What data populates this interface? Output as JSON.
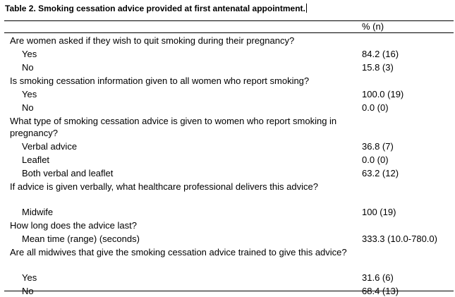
{
  "title": "Table 2. Smoking cessation advice provided at first antenatal appointment.",
  "column_header": "% (n)",
  "rows": [
    {
      "kind": "question",
      "text": "Are women asked if they wish to quit smoking during their pregnancy?",
      "lines": 1
    },
    {
      "kind": "answer",
      "text": "Yes",
      "value": "84.2 (16)"
    },
    {
      "kind": "answer",
      "text": "No",
      "value": "15.8 (3)"
    },
    {
      "kind": "question",
      "text": "Is smoking cessation information given to all women who report smoking?",
      "lines": 1
    },
    {
      "kind": "answer",
      "text": "Yes",
      "value": "100.0 (19)"
    },
    {
      "kind": "answer",
      "text": "No",
      "value": "0.0 (0)"
    },
    {
      "kind": "question",
      "text": "What type of smoking cessation advice is given to women who report smoking in pregnancy?",
      "lines": 2
    },
    {
      "kind": "answer",
      "text": "Verbal advice",
      "value": "36.8 (7)"
    },
    {
      "kind": "answer",
      "text": "Leaflet",
      "value": "0.0 (0)"
    },
    {
      "kind": "answer",
      "text": "Both verbal and leaflet",
      "value": "63.2 (12)"
    },
    {
      "kind": "question",
      "text": "If advice is given verbally, what healthcare professional delivers this advice?",
      "lines": 2
    },
    {
      "kind": "answer",
      "text": "Midwife",
      "value": "100 (19)"
    },
    {
      "kind": "question",
      "text": "How long does the advice last?",
      "lines": 1
    },
    {
      "kind": "answer",
      "text": "Mean time (range) (seconds)",
      "value": "333.3 (10.0-780.0)"
    },
    {
      "kind": "question",
      "text": "Are all midwives that give the smoking cessation advice trained to give this advice?",
      "lines": 2
    },
    {
      "kind": "answer",
      "text": "Yes",
      "value": "31.6 (6)"
    },
    {
      "kind": "answer",
      "text": "No",
      "value": "68.4 (13)"
    }
  ]
}
